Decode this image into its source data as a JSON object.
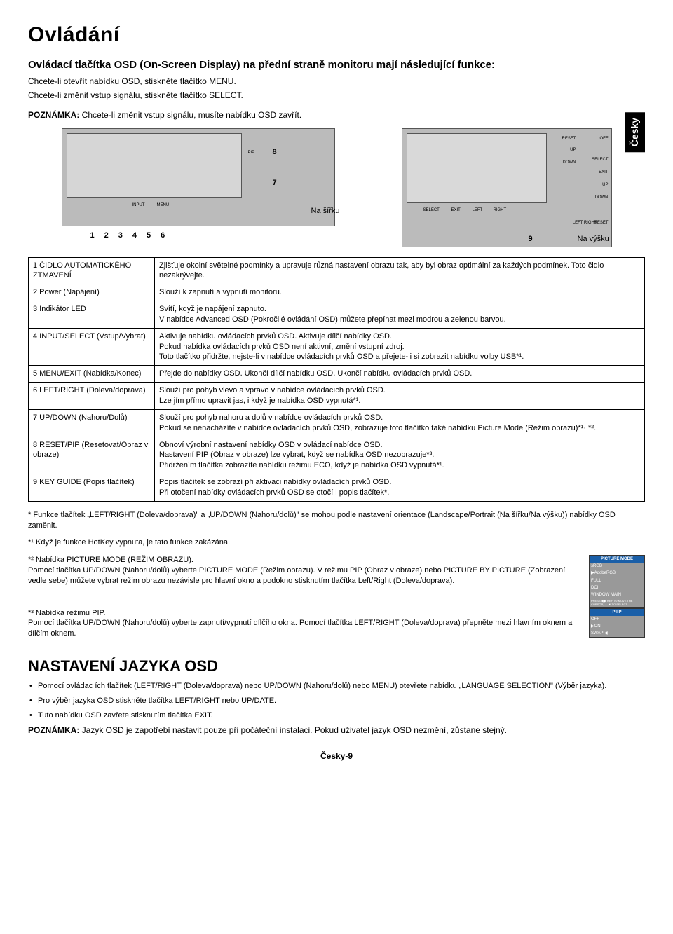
{
  "title": "Ovládání",
  "subtitle": "Ovládací tlačítka OSD (On-Screen Display) na přední straně monitoru mají následující funkce:",
  "intro": [
    "Chcete-li otevřít nabídku OSD, stiskněte tlačítko MENU.",
    "Chcete-li změnit vstup signálu, stiskněte tlačítko SELECT."
  ],
  "note": {
    "label": "POZNÁMKA:",
    "text": "Chcete-li změnit vstup signálu, musíte nabídku OSD zavřít."
  },
  "side_tab": "Česky",
  "diagram": {
    "label_width": "Na šířku",
    "label_height": "Na výšku",
    "num7": "7",
    "num8": "8",
    "num9": "9",
    "numrow": [
      "1",
      "2",
      "3",
      "4",
      "5",
      "6"
    ],
    "tiny": {
      "pip": "PIP",
      "input": "INPUT",
      "menu": "MENU",
      "select": "SELECT",
      "exit": "EXIT",
      "left": "LEFT",
      "right": "RIGHT",
      "up": "UP",
      "down": "DOWN",
      "reset": "RESET",
      "off": "OFF"
    }
  },
  "rows": [
    {
      "n": "1",
      "label": "ČIDLO AUTOMATICKÉHO ZTMAVENÍ",
      "desc": "Zjišťuje okolní světelné podmínky a upravuje různá nastavení obrazu tak, aby byl obraz optimální za každých podmínek. Toto čidlo nezakrývejte."
    },
    {
      "n": "2",
      "label": "Power (Napájení)",
      "desc": "Slouží k zapnutí a vypnutí monitoru."
    },
    {
      "n": "3",
      "label": "Indikátor LED",
      "desc": "Svítí, když je napájení zapnuto.\nV nabídce Advanced OSD (Pokročilé ovládání OSD) můžete přepínat mezi modrou a zelenou barvou."
    },
    {
      "n": "4",
      "label": "INPUT/SELECT (Vstup/Vybrat)",
      "desc": "Aktivuje nabídku ovládacích prvků OSD. Aktivuje dílčí nabídky OSD.\nPokud nabídka ovládacích prvků OSD není aktivní, změní vstupní zdroj.\nToto tlačítko přidržte, nejste-li v nabídce ovládacích prvků OSD a přejete-li si zobrazit nabídku volby USB*¹."
    },
    {
      "n": "5",
      "label": "MENU/EXIT (Nabídka/Konec)",
      "desc": "Přejde do nabídky OSD. Ukončí dílčí nabídku OSD. Ukončí nabídku ovládacích prvků OSD."
    },
    {
      "n": "6",
      "label": "LEFT/RIGHT (Doleva/doprava)",
      "desc": "Slouží pro pohyb vlevo a vpravo v nabídce ovládacích prvků OSD.\nLze jím přímo upravit jas, i když je nabídka OSD vypnutá*¹."
    },
    {
      "n": "7",
      "label": "UP/DOWN (Nahoru/Dolů)",
      "desc": "Slouží pro pohyb nahoru a dolů v nabídce ovládacích prvků OSD.\nPokud se nenacházíte v nabídce ovládacích prvků OSD, zobrazuje toto tlačítko také nabídku Picture Mode (Režim obrazu)*¹· *²."
    },
    {
      "n": "8",
      "label": "RESET/PIP (Resetovat/Obraz v obraze)",
      "desc": "Obnoví výrobní nastavení nabídky OSD v ovládací nabídce OSD.\nNastavení PIP (Obraz v obraze) lze vybrat, když se nabídka OSD nezobrazuje*³.\nPřidržením tlačítka zobrazíte nabídku režimu ECO, když je nabídka OSD vypnutá*¹."
    },
    {
      "n": "9",
      "label": "KEY GUIDE (Popis tlačítek)",
      "desc": "Popis tlačítek se zobrazí při aktivaci nabídky ovládacích prvků OSD.\nPři otočení nabídky ovládacích prvků OSD se otočí i popis tlačítek*."
    }
  ],
  "footnotes": [
    {
      "mark": "*",
      "text": "Funkce tlačítek „LEFT/RIGHT (Doleva/doprava)\" a „UP/DOWN (Nahoru/dolů)\" se mohou podle nastavení orientace (Landscape/Portrait (Na šířku/Na výšku)) nabídky OSD zaměnit."
    },
    {
      "mark": "*¹",
      "text": "Když je funkce HotKey vypnuta, je tato funkce zakázána."
    },
    {
      "mark": "*²",
      "text": "Nabídka PICTURE MODE (REŽIM OBRAZU).\nPomocí tlačítka UP/DOWN (Nahoru/dolů) vyberte PICTURE MODE (Režim obrazu). V režimu PIP (Obraz v obraze) nebo PICTURE BY PICTURE (Zobrazení vedle sebe) můžete vybrat režim obrazu nezávisle pro hlavní okno a podokno stisknutím tlačítka Left/Right (Doleva/doprava)."
    },
    {
      "mark": "*³",
      "text": "Nabídka režimu PIP.\nPomocí tlačítka UP/DOWN (Nahoru/dolů) vyberte zapnutí/vypnutí dílčího okna. Pomocí tlačítka LEFT/RIGHT (Doleva/doprava) přepněte mezi hlavním oknem a dílčím oknem."
    }
  ],
  "osd_preview_1": {
    "title": "PICTURE MODE",
    "rows": [
      "sRGB",
      "▶AdobeRGB",
      "FULL",
      "DCI",
      "WINDOW     MAIN"
    ],
    "footer": "PRESS ◀ ▶ KEY TO MOVE THE CURSOR, ▲ ▼ TO SELECT"
  },
  "osd_preview_2": {
    "title": "P I P",
    "rows": [
      "OFF",
      "▶ON"
    ],
    "footer": "SWAP ◀"
  },
  "lang_section": {
    "title": "NASTAVENÍ JAZYKA OSD",
    "items": [
      "Pomocí ovládac ích tlačítek (LEFT/RIGHT (Doleva/doprava) nebo UP/DOWN (Nahoru/dolů) nebo MENU) otevřete nabídku „LANGUAGE SELECTION\" (Výběr jazyka).",
      "Pro výběr jazyka OSD stiskněte tlačítka LEFT/RIGHT nebo UP/DATE.",
      "Tuto nabídku OSD zavřete stisknutím tlačítka EXIT."
    ],
    "note": {
      "label": "POZNÁMKA:",
      "text": "Jazyk OSD je zapotřebí nastavit pouze při počáteční instalaci. Pokud uživatel jazyk OSD nezmění, zůstane stejný."
    }
  },
  "page_number": "Česky-9"
}
